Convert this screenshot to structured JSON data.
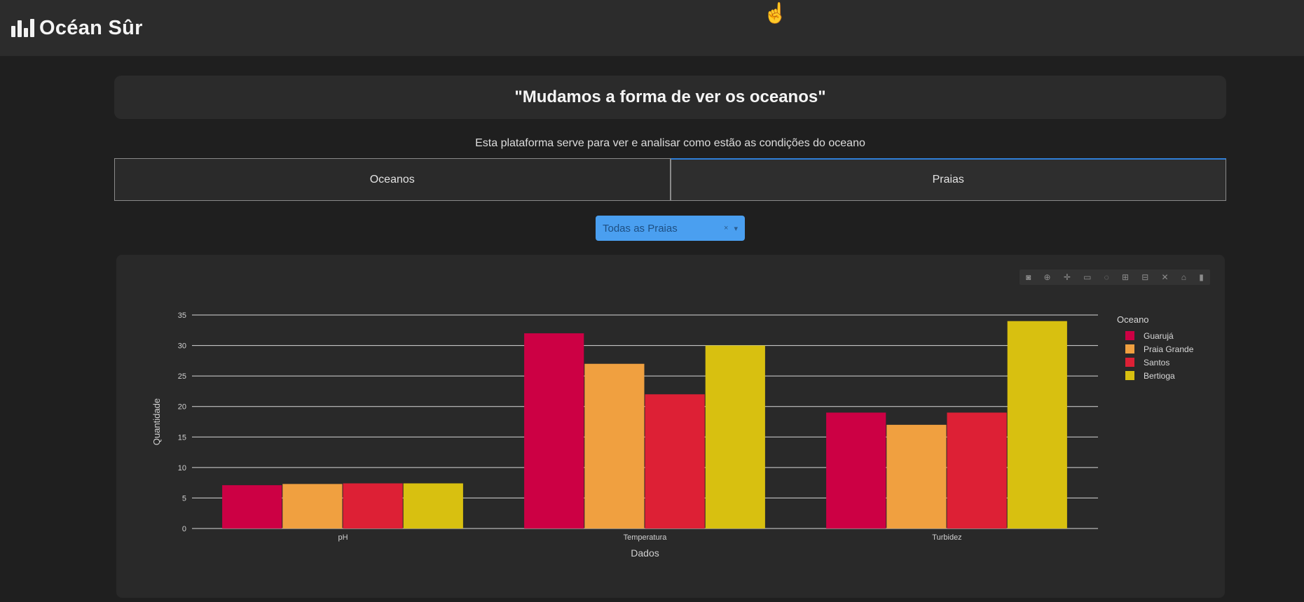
{
  "navbar": {
    "brand": "Océan Sûr",
    "logo_icon": "bar-chart-icon"
  },
  "slogan": "\"Mudamos a forma de ver os oceanos\"",
  "subtitle": "Esta plataforma serve para ver e analisar como estão as condições do oceano",
  "tabs": [
    {
      "label": "Oceanos",
      "active": false
    },
    {
      "label": "Praias",
      "active": true
    }
  ],
  "dropdown": {
    "value": "Todas as Praias"
  },
  "modebar_icons": [
    "camera-icon",
    "zoom-icon",
    "pan-icon",
    "box-select-icon",
    "lasso-icon",
    "zoom-in-icon",
    "zoom-out-icon",
    "autoscale-icon",
    "reset-axes-icon",
    "plotly-logo-icon"
  ],
  "chart_data": {
    "type": "bar",
    "categories": [
      "pH",
      "Temperatura",
      "Turbidez"
    ],
    "series": [
      {
        "name": "Guarujá",
        "color": "#cc0044",
        "values": [
          7.1,
          32,
          19
        ]
      },
      {
        "name": "Praia Grande",
        "color": "#f0a040",
        "values": [
          7.3,
          27,
          17
        ]
      },
      {
        "name": "Santos",
        "color": "#dd2035",
        "values": [
          7.4,
          22,
          19
        ]
      },
      {
        "name": "Bertioga",
        "color": "#d8c010",
        "values": [
          7.4,
          30,
          34
        ]
      }
    ],
    "xlabel": "Dados",
    "ylabel": "Quantidade",
    "legend_title": "Oceano",
    "ylim": [
      0,
      35
    ],
    "yticks": [
      0,
      5,
      10,
      15,
      20,
      25,
      30,
      35
    ],
    "grid": true,
    "legend_position": "right"
  }
}
